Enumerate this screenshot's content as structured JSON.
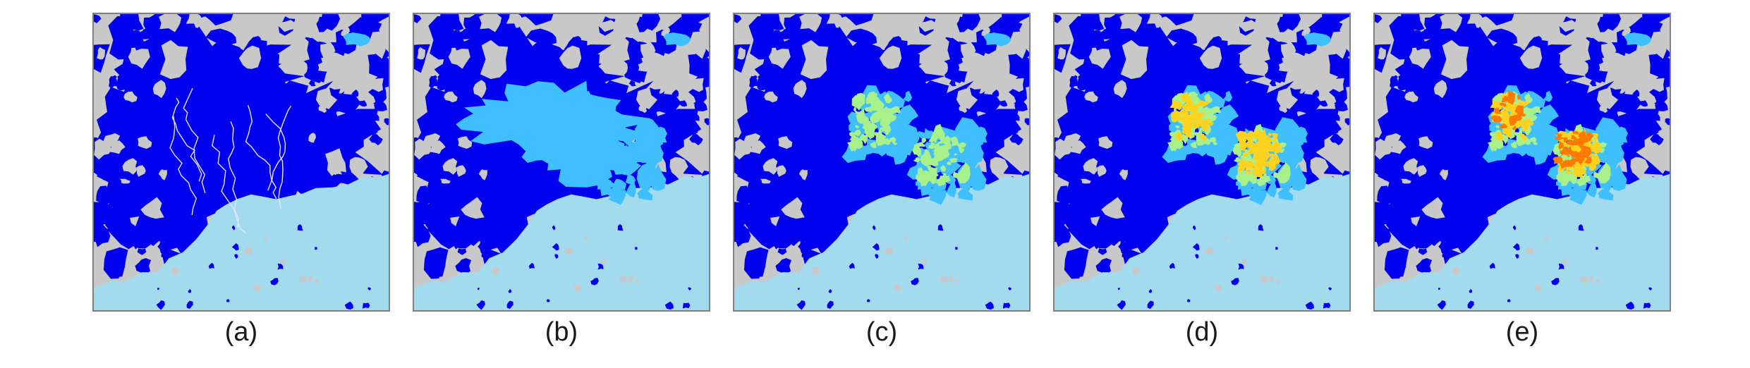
{
  "figure": {
    "panels": [
      {
        "label": "(a)",
        "stage": 0
      },
      {
        "label": "(b)",
        "stage": 1
      },
      {
        "label": "(c)",
        "stage": 2
      },
      {
        "label": "(d)",
        "stage": 3
      },
      {
        "label": "(e)",
        "stage": 4
      }
    ],
    "colors": {
      "land": "#c8c8c8",
      "sea": "#a2dbee",
      "urban": "#0000ee",
      "level_1": "#40bfff",
      "level_2": "#a8f08a",
      "level_3": "#ffd21e",
      "level_4": "#ff7a00",
      "level_5": "#c81414",
      "frame": "#808080"
    }
  }
}
